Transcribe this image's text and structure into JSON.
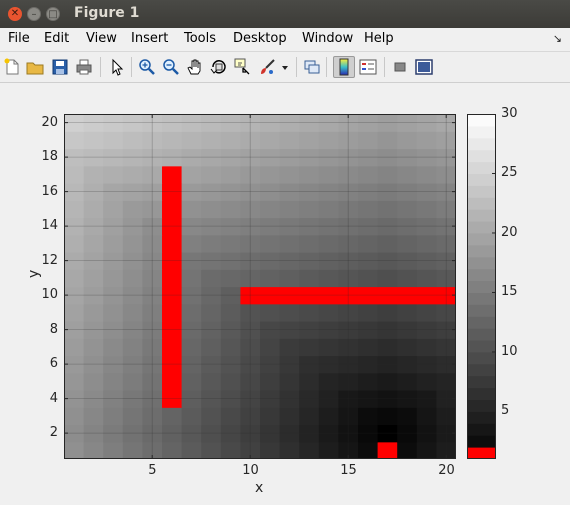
{
  "window": {
    "title": "Figure 1"
  },
  "menu": [
    "File",
    "Edit",
    "View",
    "Insert",
    "Tools",
    "Desktop",
    "Window",
    "Help"
  ],
  "toolbar": {
    "icons": [
      "new-figure-icon",
      "open-file-icon",
      "save-icon",
      "print-icon",
      "edit-plot-icon",
      "zoom-in-icon",
      "zoom-out-icon",
      "pan-icon",
      "rotate-3d-icon",
      "data-cursor-icon",
      "brush-icon",
      "link-plot-icon",
      "insert-colorbar-icon",
      "insert-legend-icon",
      "hide-plot-tools-icon",
      "show-plot-tools-icon"
    ]
  },
  "chart_data": {
    "type": "heatmap",
    "title": "",
    "xlabel": "x",
    "ylabel": "y",
    "xlim": [
      0.5,
      20.5
    ],
    "ylim": [
      0.5,
      20.5
    ],
    "xticks": [
      5,
      10,
      15,
      20
    ],
    "yticks": [
      2,
      4,
      6,
      8,
      10,
      12,
      14,
      16,
      18,
      20
    ],
    "colormap": "gray with red obstacles",
    "obstacle_color": "#ff0000",
    "colorbar": {
      "min": 1,
      "max": 30,
      "ticks": [
        5,
        10,
        15,
        20,
        25,
        30
      ],
      "obstacle_band": [
        1,
        2
      ]
    },
    "obstacles": [
      {
        "x": [
          6,
          6
        ],
        "y": [
          4,
          17
        ]
      },
      {
        "x": [
          10,
          20
        ],
        "y": [
          10,
          10
        ]
      },
      {
        "x": [
          17,
          17
        ],
        "y": [
          1,
          1
        ]
      }
    ],
    "goal": [
      17,
      2
    ],
    "grid": true
  }
}
